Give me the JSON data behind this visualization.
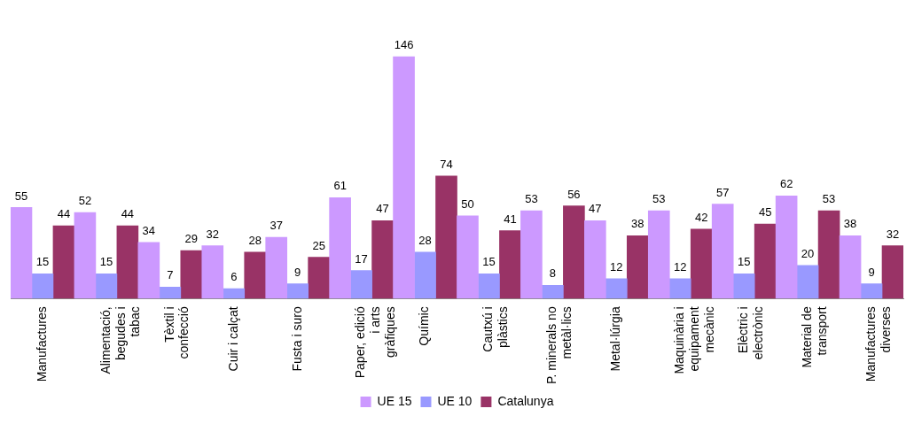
{
  "chart_data": {
    "type": "bar",
    "categories": [
      "Manufactures",
      "Alimentació, begudes i tabac",
      "Tèxtil i confecció",
      "Cuir i calçat",
      "Fusta i suro",
      "Paper, edició i arts gràfiques",
      "Químic",
      "Cautxú i plàstics",
      "P. minerals no metàl·lics",
      "Metal·lúrgia",
      "Maquinària i equipament mecànic",
      "Elèctric i electrònic",
      "Material de transport",
      "Manufactures diverses"
    ],
    "series": [
      {
        "name": "UE 15",
        "color": "#cc99ff",
        "values": [
          55,
          52,
          34,
          32,
          37,
          61,
          146,
          50,
          53,
          47,
          53,
          57,
          62,
          38
        ]
      },
      {
        "name": "UE 10",
        "color": "#9999ff",
        "values": [
          15,
          15,
          7,
          6,
          9,
          17,
          28,
          15,
          8,
          12,
          12,
          15,
          20,
          9
        ]
      },
      {
        "name": "Catalunya",
        "color": "#993366",
        "values": [
          44,
          44,
          29,
          28,
          25,
          47,
          74,
          41,
          56,
          38,
          42,
          45,
          53,
          32
        ]
      }
    ],
    "data_labels": true,
    "legend": "bottom",
    "grid": false
  }
}
